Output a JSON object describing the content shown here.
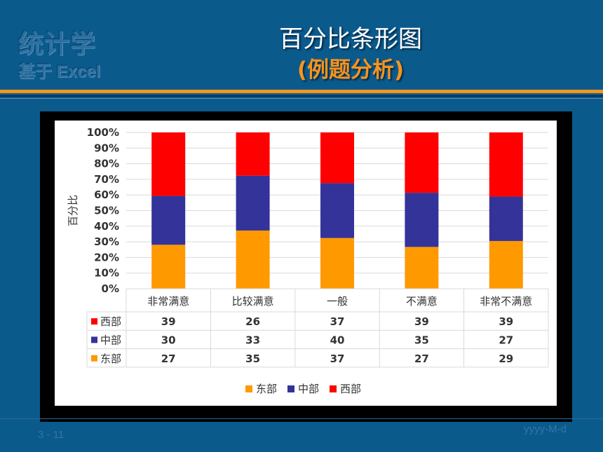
{
  "logo": {
    "line1": "统计学",
    "line2": "基于 Excel"
  },
  "slide": {
    "title": "百分比条形图",
    "subtitle": "(例题分析)",
    "number": "3 - 11",
    "date": "yyyy-M-d"
  },
  "colors": {
    "background": "#0b5a8c",
    "accent": "#f7941d",
    "east": "#ff9900",
    "central": "#333399",
    "west": "#ff0000"
  },
  "chart_data": {
    "type": "bar",
    "stacking": "percent",
    "categories": [
      "非常满意",
      "比较满意",
      "一般",
      "不满意",
      "非常不满意"
    ],
    "ylabel": "百分比",
    "yticks": [
      "0%",
      "10%",
      "20%",
      "30%",
      "40%",
      "50%",
      "60%",
      "70%",
      "80%",
      "90%",
      "100%"
    ],
    "ylim": [
      0,
      100
    ],
    "grid": true,
    "legend_position": "bottom",
    "series": [
      {
        "name": "东部",
        "color": "#ff9900",
        "values": [
          27,
          35,
          37,
          27,
          29
        ]
      },
      {
        "name": "中部",
        "color": "#333399",
        "values": [
          30,
          33,
          40,
          35,
          27
        ]
      },
      {
        "name": "西部",
        "color": "#ff0000",
        "values": [
          39,
          26,
          37,
          39,
          39
        ]
      }
    ],
    "table_rows": [
      "西部",
      "中部",
      "东部"
    ]
  }
}
